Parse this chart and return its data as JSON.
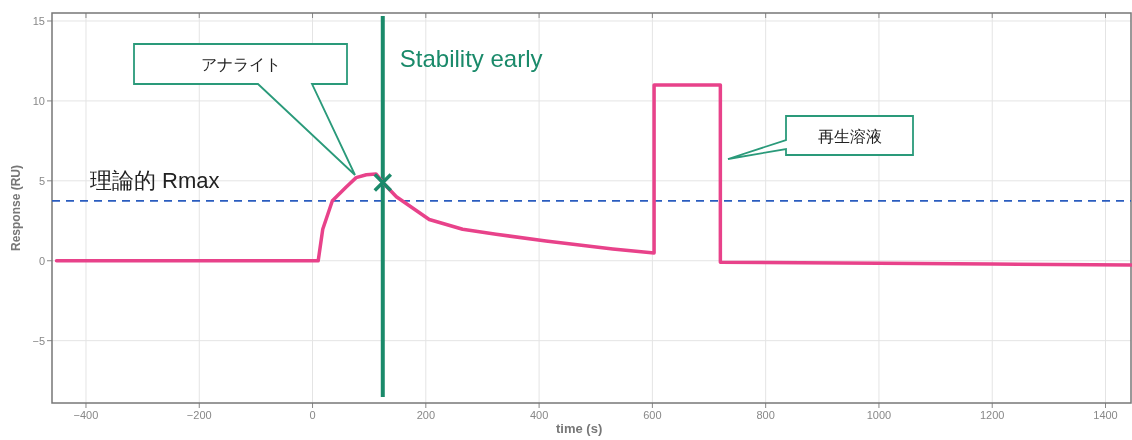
{
  "chart_data": {
    "type": "line",
    "xlabel": "time (s)",
    "ylabel": "Response (RU)",
    "xlim": [
      -460,
      1445
    ],
    "ylim": [
      -8.9,
      15.5
    ],
    "xticks": [
      {
        "value": -400,
        "label": "−400"
      },
      {
        "value": -200,
        "label": "−200"
      },
      0,
      200,
      400,
      600,
      800,
      1000,
      1200,
      1400
    ],
    "yticks": [
      {
        "value": -5,
        "label": "−5"
      },
      0,
      5,
      10,
      15
    ],
    "grid": true,
    "line_style": "solid",
    "series": [
      {
        "color": "#e8428a",
        "x": [
          -452,
          10,
          18,
          35,
          59,
          77,
          95,
          112,
          124,
          148,
          206,
          265,
          324,
          412,
          530,
          603,
          603,
          720,
          720,
          1000,
          1200,
          1445
        ],
        "values": [
          0,
          0,
          1.97,
          3.75,
          4.6,
          5.2,
          5.38,
          5.43,
          4.9,
          4.0,
          2.58,
          1.97,
          1.66,
          1.23,
          0.74,
          0.49,
          11.0,
          11.0,
          -0.1,
          -0.15,
          -0.2,
          -0.27
        ]
      },
      {
        "type": "scatter",
        "marker": "cross",
        "color": "#1a8a6a",
        "x": [
          124
        ],
        "values": [
          4.9
        ]
      }
    ],
    "ref_lines": [
      {
        "axis": "y",
        "value": 3.75,
        "label": "理論的 Rmax",
        "color": "#2a5cbf",
        "line_style": "dashed"
      },
      {
        "axis": "x",
        "value": 124,
        "label": "Stability early",
        "color": "#1a8a6a",
        "line_style": "solid"
      }
    ],
    "annotations": [
      "アナライト",
      "再生溶液"
    ]
  }
}
